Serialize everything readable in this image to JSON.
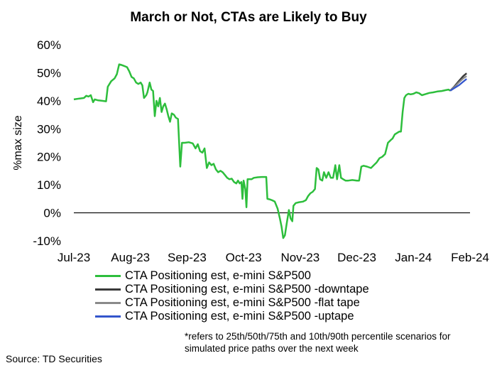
{
  "chart_data": {
    "type": "line",
    "title": "March or Not, CTAs are Likely to Buy",
    "xlabel": "",
    "ylabel": "%max size",
    "ylim": [
      -10,
      60
    ],
    "y_ticks": [
      -10,
      0,
      10,
      20,
      30,
      40,
      50,
      60
    ],
    "y_tick_labels": [
      "-10%",
      "0%",
      "10%",
      "20%",
      "30%",
      "40%",
      "50%",
      "60%"
    ],
    "x_tick_labels": [
      "Jul-23",
      "Aug-23",
      "Sep-23",
      "Oct-23",
      "Nov-23",
      "Dec-23",
      "Jan-24",
      "Feb-24"
    ],
    "x_range": [
      0,
      7
    ],
    "series": [
      {
        "name": "CTA Positioning est, e-mini S&P500",
        "color": "#2dbe3c",
        "points": [
          [
            0.0,
            40.5
          ],
          [
            0.1,
            40.8
          ],
          [
            0.18,
            41.0
          ],
          [
            0.22,
            41.8
          ],
          [
            0.26,
            41.5
          ],
          [
            0.3,
            42.0
          ],
          [
            0.34,
            39.5
          ],
          [
            0.37,
            40.5
          ],
          [
            0.42,
            40.2
          ],
          [
            0.5,
            40.0
          ],
          [
            0.57,
            39.8
          ],
          [
            0.6,
            45.0
          ],
          [
            0.66,
            47.0
          ],
          [
            0.72,
            48.0
          ],
          [
            0.76,
            49.5
          ],
          [
            0.8,
            53.0
          ],
          [
            0.84,
            52.8
          ],
          [
            0.88,
            52.5
          ],
          [
            0.94,
            52.0
          ],
          [
            0.98,
            50.5
          ],
          [
            1.02,
            48.5
          ],
          [
            1.06,
            48.0
          ],
          [
            1.1,
            46.5
          ],
          [
            1.14,
            46.0
          ],
          [
            1.18,
            46.5
          ],
          [
            1.21,
            45.5
          ],
          [
            1.24,
            41.0
          ],
          [
            1.28,
            42.0
          ],
          [
            1.3,
            43.0
          ],
          [
            1.34,
            46.5
          ],
          [
            1.37,
            44.0
          ],
          [
            1.4,
            43.5
          ],
          [
            1.43,
            34.5
          ],
          [
            1.46,
            40.0
          ],
          [
            1.49,
            38.0
          ],
          [
            1.52,
            41.0
          ],
          [
            1.55,
            36.0
          ],
          [
            1.58,
            38.0
          ],
          [
            1.61,
            39.0
          ],
          [
            1.64,
            37.0
          ],
          [
            1.67,
            34.5
          ],
          [
            1.7,
            32.5
          ],
          [
            1.73,
            35.5
          ],
          [
            1.77,
            35.0
          ],
          [
            1.8,
            34.0
          ],
          [
            1.84,
            33.5
          ],
          [
            1.88,
            16.5
          ],
          [
            1.91,
            25.0
          ],
          [
            1.96,
            25.0
          ],
          [
            2.03,
            25.2
          ],
          [
            2.1,
            24.8
          ],
          [
            2.15,
            23.0
          ],
          [
            2.19,
            24.5
          ],
          [
            2.23,
            22.0
          ],
          [
            2.27,
            21.5
          ],
          [
            2.31,
            23.0
          ],
          [
            2.35,
            16.0
          ],
          [
            2.39,
            18.0
          ],
          [
            2.43,
            17.0
          ],
          [
            2.47,
            17.5
          ],
          [
            2.51,
            15.5
          ],
          [
            2.55,
            14.5
          ],
          [
            2.59,
            15.0
          ],
          [
            2.63,
            14.5
          ],
          [
            2.67,
            13.5
          ],
          [
            2.71,
            12.5
          ],
          [
            2.75,
            12.0
          ],
          [
            2.79,
            12.2
          ],
          [
            2.83,
            11.0
          ],
          [
            2.87,
            10.5
          ],
          [
            2.9,
            11.5
          ],
          [
            2.93,
            10.5
          ],
          [
            2.96,
            11.0
          ],
          [
            2.98,
            5.0
          ],
          [
            3.0,
            11.5
          ],
          [
            3.03,
            8.5
          ],
          [
            3.05,
            2.0
          ],
          [
            3.07,
            12.0
          ],
          [
            3.1,
            12.0
          ],
          [
            3.14,
            12.0
          ],
          [
            3.18,
            12.5
          ],
          [
            3.25,
            12.7
          ],
          [
            3.32,
            12.8
          ],
          [
            3.4,
            12.8
          ],
          [
            3.42,
            5.0
          ],
          [
            3.46,
            4.8
          ],
          [
            3.5,
            4.5
          ],
          [
            3.55,
            4.0
          ],
          [
            3.6,
            1.5
          ],
          [
            3.64,
            -2.0
          ],
          [
            3.67,
            -5.0
          ],
          [
            3.7,
            -9.0
          ],
          [
            3.73,
            -8.0
          ],
          [
            3.76,
            -4.0
          ],
          [
            3.8,
            1.0
          ],
          [
            3.83,
            -2.0
          ],
          [
            3.86,
            -3.0
          ],
          [
            3.88,
            2.5
          ],
          [
            3.92,
            3.5
          ],
          [
            3.98,
            3.8
          ],
          [
            4.05,
            4.0
          ],
          [
            4.1,
            4.5
          ],
          [
            4.14,
            6.0
          ],
          [
            4.18,
            7.0
          ],
          [
            4.22,
            7.5
          ],
          [
            4.26,
            8.5
          ],
          [
            4.29,
            16.0
          ],
          [
            4.32,
            15.5
          ],
          [
            4.35,
            12.0
          ],
          [
            4.39,
            11.5
          ],
          [
            4.42,
            14.5
          ],
          [
            4.46,
            12.5
          ],
          [
            4.5,
            14.5
          ],
          [
            4.54,
            12.5
          ],
          [
            4.58,
            12.5
          ],
          [
            4.62,
            17.0
          ],
          [
            4.65,
            12.0
          ],
          [
            4.69,
            17.0
          ],
          [
            4.72,
            12.5
          ],
          [
            4.76,
            12.0
          ],
          [
            4.8,
            11.5
          ],
          [
            4.85,
            11.5
          ],
          [
            4.92,
            11.7
          ],
          [
            5.0,
            11.5
          ],
          [
            5.04,
            11.5
          ],
          [
            5.08,
            16.5
          ],
          [
            5.12,
            16.8
          ],
          [
            5.18,
            16.5
          ],
          [
            5.25,
            16.0
          ],
          [
            5.3,
            17.0
          ],
          [
            5.35,
            18.0
          ],
          [
            5.4,
            19.5
          ],
          [
            5.45,
            20.0
          ],
          [
            5.5,
            21.0
          ],
          [
            5.55,
            25.0
          ],
          [
            5.6,
            26.0
          ],
          [
            5.63,
            26.5
          ],
          [
            5.67,
            28.0
          ],
          [
            5.71,
            28.5
          ],
          [
            5.75,
            29.0
          ],
          [
            5.78,
            29.0
          ],
          [
            5.81,
            36.0
          ],
          [
            5.84,
            41.0
          ],
          [
            5.87,
            42.0
          ],
          [
            5.91,
            42.5
          ],
          [
            5.95,
            42.3
          ],
          [
            6.0,
            42.5
          ],
          [
            6.05,
            43.0
          ],
          [
            6.1,
            42.7
          ],
          [
            6.15,
            42.0
          ],
          [
            6.2,
            42.3
          ],
          [
            6.28,
            42.8
          ],
          [
            6.35,
            43.0
          ],
          [
            6.42,
            43.3
          ],
          [
            6.5,
            43.5
          ],
          [
            6.57,
            43.8
          ],
          [
            6.62,
            44.0
          ],
          [
            6.65,
            43.6
          ]
        ]
      },
      {
        "name": "CTA Positioning est, e-mini S&P500 -downtape",
        "color": "#3a3a3a",
        "points": [
          [
            6.65,
            43.6
          ],
          [
            6.72,
            45.0
          ],
          [
            6.8,
            47.0
          ],
          [
            6.88,
            48.8
          ],
          [
            6.94,
            49.8
          ]
        ]
      },
      {
        "name": "CTA Positioning est, e-mini S&P500 -flat tape",
        "color": "#8a8a8a",
        "points": [
          [
            6.65,
            43.6
          ],
          [
            6.72,
            44.8
          ],
          [
            6.8,
            46.5
          ],
          [
            6.88,
            48.0
          ],
          [
            6.94,
            48.8
          ]
        ]
      },
      {
        "name": "CTA Positioning est, e-mini S&P500 -uptape",
        "color": "#3355cc",
        "points": [
          [
            6.65,
            43.6
          ],
          [
            6.72,
            44.5
          ],
          [
            6.8,
            45.5
          ],
          [
            6.88,
            46.8
          ],
          [
            6.94,
            47.8
          ]
        ]
      }
    ]
  },
  "footnote": {
    "line1": "*refers to 25th/50th/75th and 10th/90th percentile scenarios for",
    "line2": "simulated price paths over the next week"
  },
  "source": "Source: TD Securities"
}
